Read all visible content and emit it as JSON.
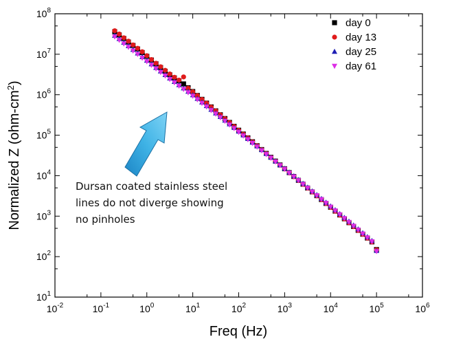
{
  "chart_data": {
    "type": "scatter",
    "title": "",
    "xlabel": "Freq (Hz)",
    "ylabel_main": "Normalized Z (ohm-cm",
    "ylabel_sup": "2",
    "ylabel_close": ")",
    "xscale": "log",
    "yscale": "log",
    "xlim": [
      0.01,
      1000000
    ],
    "ylim": [
      10,
      100000000
    ],
    "x_ticks": [
      {
        "base": "10",
        "exp": "-2",
        "value": 0.01
      },
      {
        "base": "10",
        "exp": "-1",
        "value": 0.1
      },
      {
        "base": "10",
        "exp": "0",
        "value": 1
      },
      {
        "base": "10",
        "exp": "1",
        "value": 10
      },
      {
        "base": "10",
        "exp": "2",
        "value": 100
      },
      {
        "base": "10",
        "exp": "3",
        "value": 1000
      },
      {
        "base": "10",
        "exp": "4",
        "value": 10000
      },
      {
        "base": "10",
        "exp": "5",
        "value": 100000
      },
      {
        "base": "10",
        "exp": "6",
        "value": 1000000
      }
    ],
    "y_ticks": [
      {
        "base": "10",
        "exp": "1",
        "value": 10
      },
      {
        "base": "10",
        "exp": "2",
        "value": 100
      },
      {
        "base": "10",
        "exp": "3",
        "value": 1000
      },
      {
        "base": "10",
        "exp": "4",
        "value": 10000
      },
      {
        "base": "10",
        "exp": "5",
        "value": 100000
      },
      {
        "base": "10",
        "exp": "6",
        "value": 1000000
      },
      {
        "base": "10",
        "exp": "7",
        "value": 10000000
      },
      {
        "base": "10",
        "exp": "8",
        "value": 100000000
      }
    ],
    "legend_position": "top-right",
    "series": [
      {
        "name": "day 0",
        "marker": "square",
        "color": "#000000",
        "x": [
          0.2,
          0.251,
          0.316,
          0.398,
          0.501,
          0.631,
          0.794,
          1,
          1.259,
          1.585,
          1.995,
          2.512,
          3.162,
          3.981,
          5.012,
          6.31,
          7.943,
          10,
          12.59,
          15.85,
          19.95,
          25.12,
          31.62,
          39.81,
          50.12,
          63.1,
          79.43,
          100,
          125.9,
          158.5,
          199.5,
          251.2,
          316.2,
          398.1,
          501.2,
          631,
          794.3,
          1000,
          1259,
          1585,
          1995,
          2512,
          3162,
          3981,
          5012,
          6310,
          7943,
          10000,
          12590,
          15850,
          19950,
          25120,
          31620,
          39810,
          50120,
          63100,
          79430,
          100000
        ],
        "y": [
          36000000,
          30000000,
          24500000,
          20000000,
          16500000,
          13500000,
          11000000,
          8900000,
          7200000,
          5800000,
          4700000,
          3800000,
          3100000,
          2600000,
          2200000,
          1850000,
          1490000,
          1200000,
          960000,
          770000,
          620000,
          500000,
          400000,
          320000,
          258000,
          207000,
          166000,
          133000,
          107000,
          86000,
          69000,
          55000,
          44200,
          35500,
          28500,
          22900,
          18400,
          14800,
          11900,
          9550,
          7670,
          6160,
          4950,
          3980,
          3200,
          2570,
          2060,
          1660,
          1330,
          1070,
          860,
          690,
          555,
          446,
          358,
          288,
          231,
          150
        ]
      },
      {
        "name": "day 13",
        "marker": "circle",
        "color": "#e01b1b",
        "x": [
          0.2,
          0.251,
          0.316,
          0.398,
          0.501,
          0.631,
          0.794,
          1,
          1.259,
          1.585,
          1.995,
          2.512,
          3.162,
          3.981,
          5.012,
          6.31,
          7.943,
          10,
          12.59,
          15.85,
          19.95,
          25.12,
          31.62,
          39.81,
          50.12,
          63.1,
          79.43,
          100,
          125.9,
          158.5,
          199.5,
          251.2,
          316.2,
          398.1,
          501.2,
          631,
          794.3,
          1000,
          1259,
          1585,
          1995,
          2512,
          3162,
          3981,
          5012,
          6310,
          7943,
          10000,
          12590,
          15850,
          19950,
          25120,
          31620,
          39810,
          50120,
          63100,
          79430,
          100000
        ],
        "y": [
          38000000,
          31500000,
          25500000,
          21000000,
          17000000,
          14000000,
          11500000,
          9200000,
          7400000,
          6000000,
          4900000,
          4000000,
          3250000,
          2700000,
          2300000,
          2750000,
          1450000,
          1180000,
          950000,
          765000,
          615000,
          495000,
          398000,
          319000,
          256000,
          206000,
          165000,
          132000,
          106000,
          85500,
          68600,
          55000,
          44000,
          35300,
          28300,
          22700,
          18300,
          14700,
          11800,
          9480,
          7620,
          6120,
          4920,
          3950,
          3180,
          2550,
          2050,
          1650,
          1320,
          1060,
          855,
          687,
          552,
          443,
          356,
          286,
          230,
          148
        ]
      },
      {
        "name": "day 25",
        "marker": "triangle-up",
        "color": "#1f1fb4",
        "x": [
          0.2,
          0.251,
          0.316,
          0.398,
          0.501,
          0.631,
          0.794,
          1,
          1.259,
          1.585,
          1.995,
          2.512,
          3.162,
          3.981,
          5.012,
          6.31,
          7.943,
          10,
          12.59,
          15.85,
          19.95,
          25.12,
          31.62,
          39.81,
          50.12,
          63.1,
          79.43,
          100,
          125.9,
          158.5,
          199.5,
          251.2,
          316.2,
          398.1,
          501.2,
          631,
          794.3,
          1000,
          1259,
          1585,
          1995,
          2512,
          3162,
          3981,
          5012,
          6310,
          7943,
          10000,
          12590,
          15850,
          19950,
          25120,
          31620,
          39810,
          50120,
          63100,
          79430,
          100000
        ],
        "y": [
          29000000,
          24000000,
          19500000,
          16000000,
          13000000,
          10600000,
          8600000,
          7000000,
          5700000,
          4650000,
          3800000,
          3100000,
          2550000,
          2100000,
          1750000,
          1450000,
          1200000,
          980000,
          800000,
          650000,
          530000,
          430000,
          350000,
          285000,
          232000,
          188000,
          153000,
          124000,
          100000,
          81500,
          66000,
          53500,
          43300,
          35000,
          28300,
          22900,
          18500,
          15000,
          12100,
          9800,
          7900,
          6400,
          5150,
          4150,
          3350,
          2700,
          2180,
          1760,
          1420,
          1140,
          920,
          740,
          595,
          478,
          384,
          308,
          247,
          140
        ]
      },
      {
        "name": "day 61",
        "marker": "triangle-down",
        "color": "#dd2ee6",
        "x": [
          0.2,
          0.251,
          0.316,
          0.398,
          0.501,
          0.631,
          0.794,
          1,
          1.259,
          1.585,
          1.995,
          2.512,
          3.162,
          3.981,
          5.012,
          6.31,
          7.943,
          10,
          12.59,
          15.85,
          19.95,
          25.12,
          31.62,
          39.81,
          50.12,
          63.1,
          79.43,
          100,
          125.9,
          158.5,
          199.5,
          251.2,
          316.2,
          398.1,
          501.2,
          631,
          794.3,
          1000,
          1259,
          1585,
          1995,
          2512,
          3162,
          3981,
          5012,
          6310,
          7943,
          10000,
          12590,
          15850,
          19950,
          25120,
          31620,
          39810,
          50120,
          63100,
          79430,
          100000
        ],
        "y": [
          27000000,
          22300000,
          18200000,
          15000000,
          12200000,
          10000000,
          8100000,
          6600000,
          5400000,
          4400000,
          3600000,
          2950000,
          2420000,
          2000000,
          1650000,
          1370000,
          1130000,
          930000,
          760000,
          620000,
          505000,
          412000,
          336000,
          274000,
          223000,
          181000,
          147000,
          119000,
          96500,
          78300,
          63500,
          51500,
          41700,
          33700,
          27300,
          22100,
          17900,
          14500,
          11700,
          9450,
          7630,
          6160,
          4970,
          4010,
          3240,
          2610,
          2110,
          1700,
          1370,
          1100,
          885,
          712,
          572,
          460,
          369,
          296,
          237,
          135
        ]
      }
    ],
    "annotation": {
      "lines": [
        "Dursan coated stainless steel",
        "lines do not diverge showing",
        "no pinholes"
      ],
      "arrow_color": "#29a3d9"
    }
  }
}
